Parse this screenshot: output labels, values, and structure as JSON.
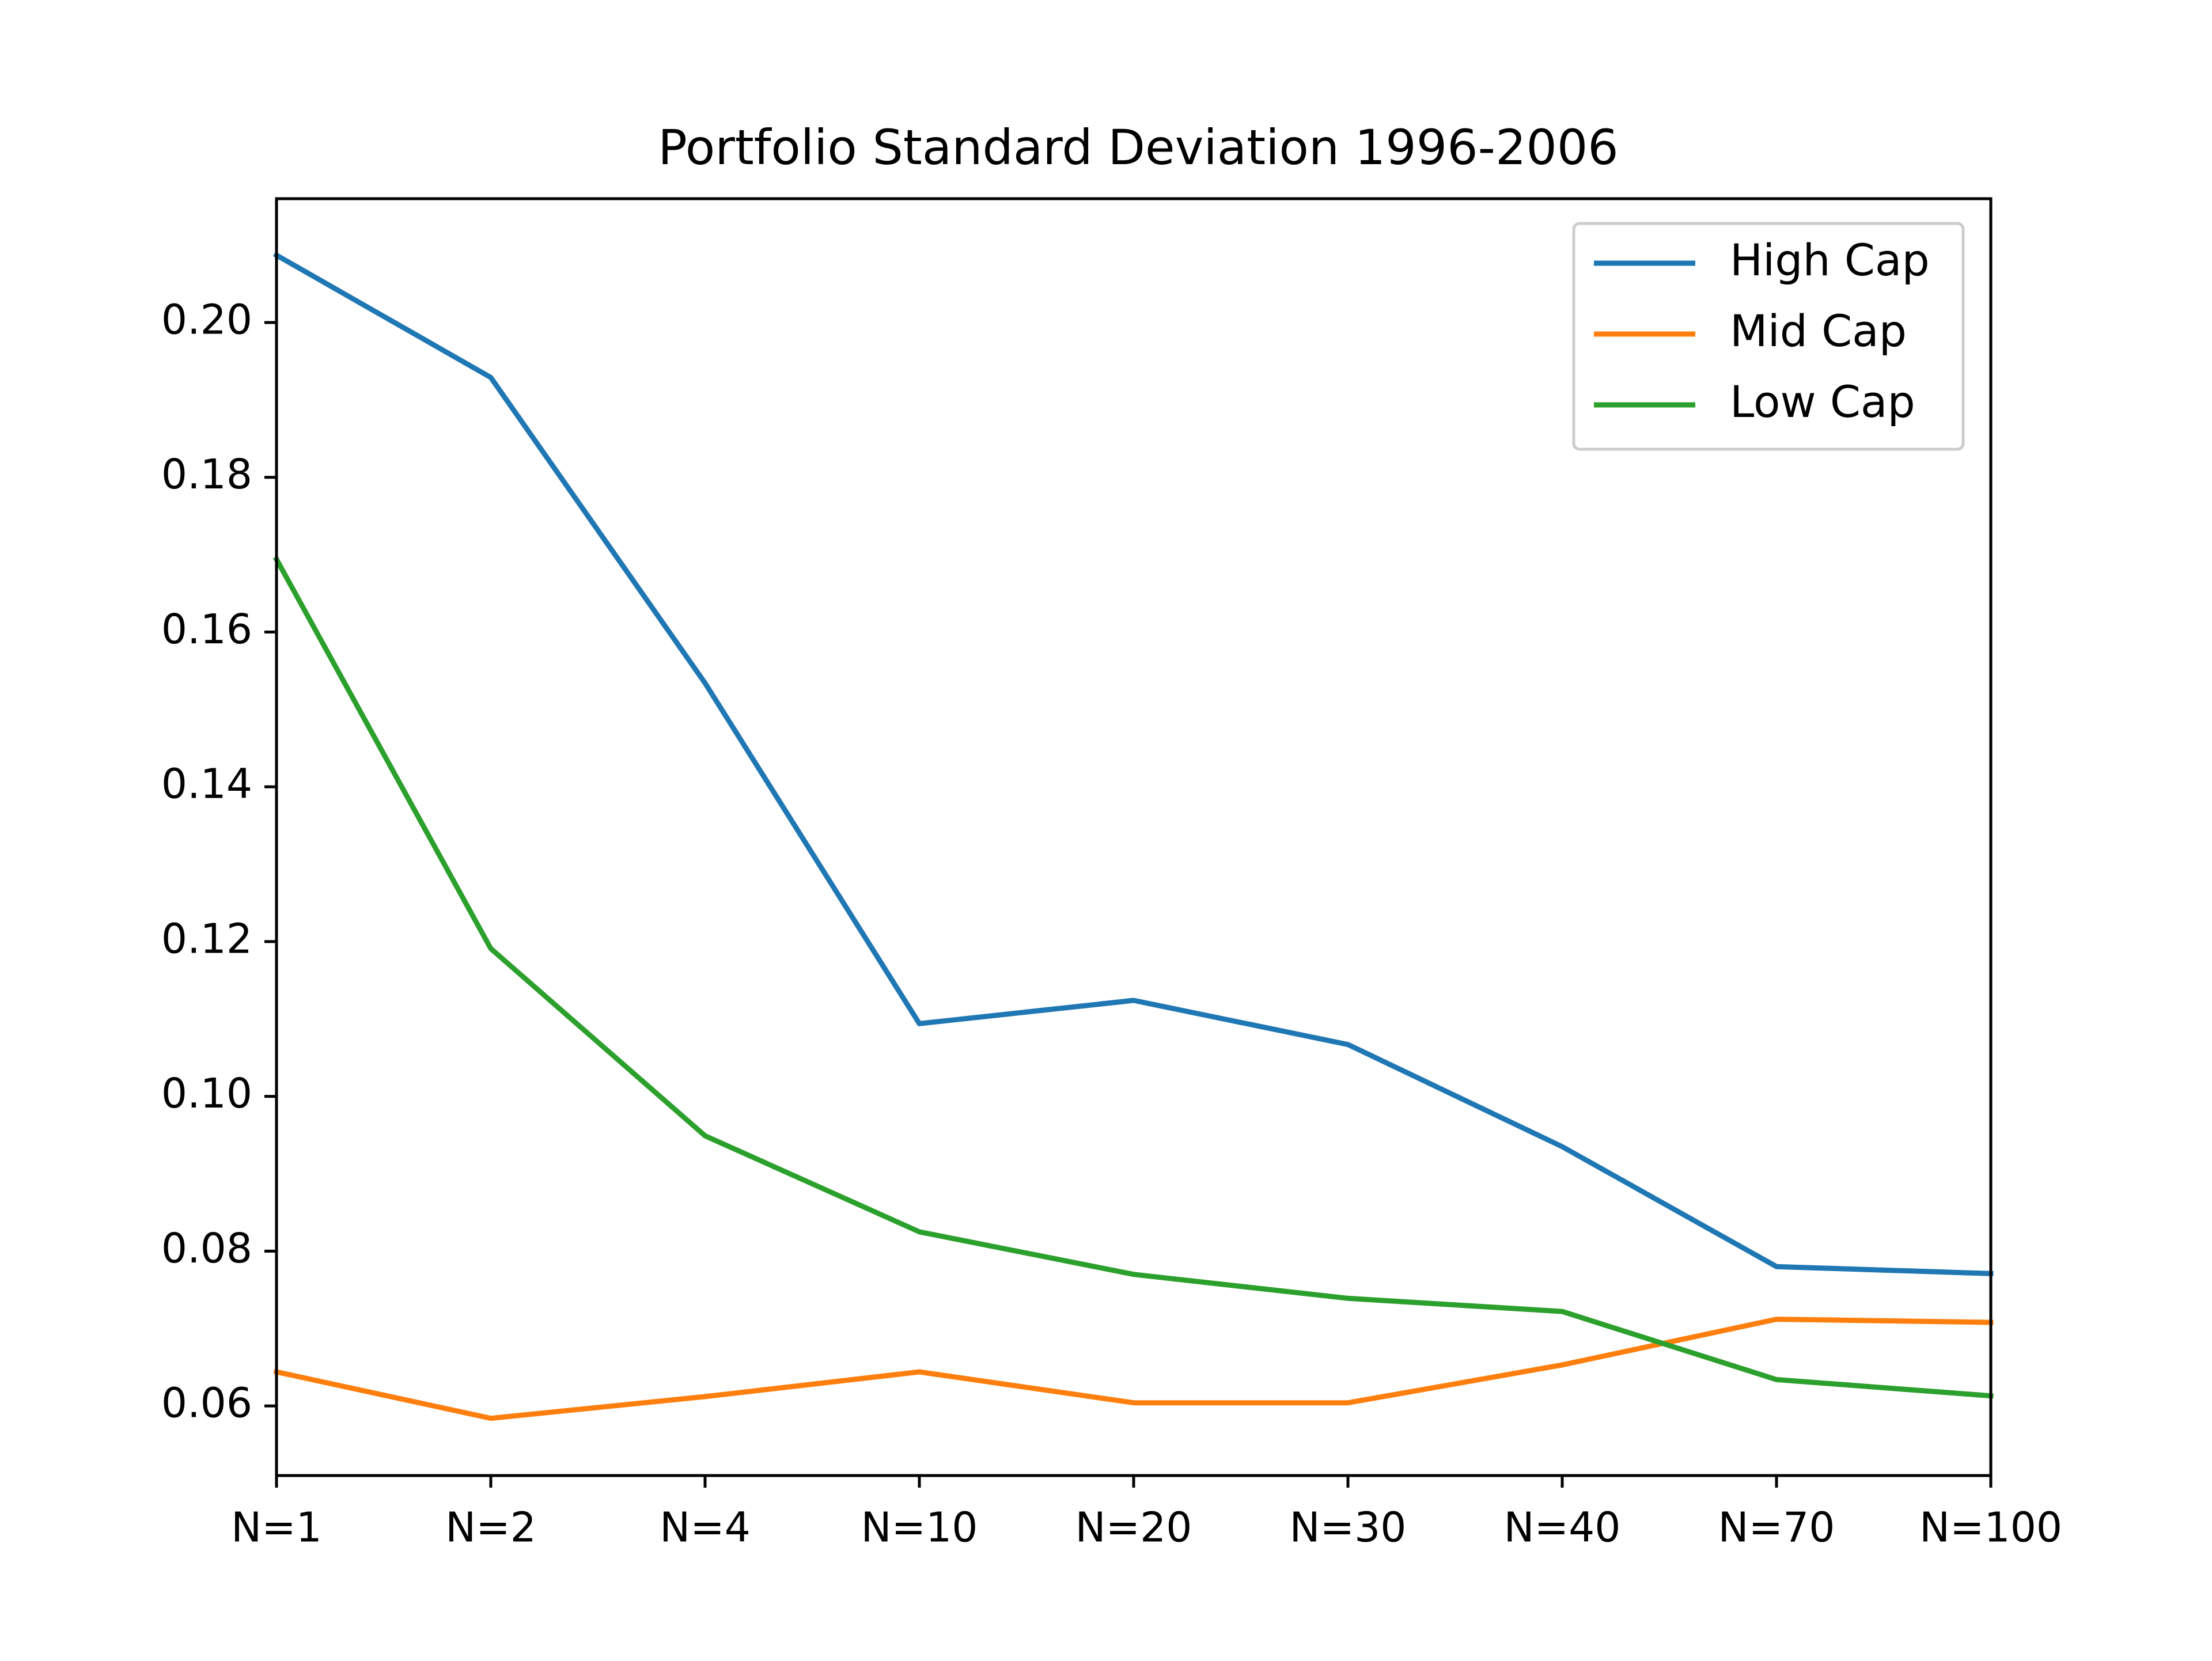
{
  "chart_data": {
    "type": "line",
    "title": "Portfolio Standard Deviation 1996-2006",
    "xlabel": "",
    "ylabel": "",
    "categories": [
      "N=1",
      "N=2",
      "N=4",
      "N=10",
      "N=20",
      "N=30",
      "N=40",
      "N=70",
      "N=100"
    ],
    "ylim": [
      0.051,
      0.216
    ],
    "yticks": [
      0.06,
      0.08,
      0.1,
      0.12,
      0.14,
      0.16,
      0.18,
      0.2
    ],
    "ytick_labels": [
      "0.06",
      "0.08",
      "0.10",
      "0.12",
      "0.14",
      "0.16",
      "0.18",
      "0.20"
    ],
    "grid": false,
    "legend_position": "top-right",
    "series": [
      {
        "name": "High Cap",
        "color": "#1f77b4",
        "values": [
          0.2087,
          0.1929,
          0.1534,
          0.1094,
          0.1124,
          0.1067,
          0.0935,
          0.078,
          0.0771
        ]
      },
      {
        "name": "Mid Cap",
        "color": "#ff7f0e",
        "values": [
          0.0644,
          0.0584,
          0.0612,
          0.0644,
          0.0604,
          0.0604,
          0.0653,
          0.0712,
          0.0708
        ]
      },
      {
        "name": "Low Cap",
        "color": "#2ca02c",
        "values": [
          0.1694,
          0.1191,
          0.0949,
          0.0825,
          0.077,
          0.0739,
          0.0722,
          0.0634,
          0.0613
        ]
      }
    ]
  }
}
